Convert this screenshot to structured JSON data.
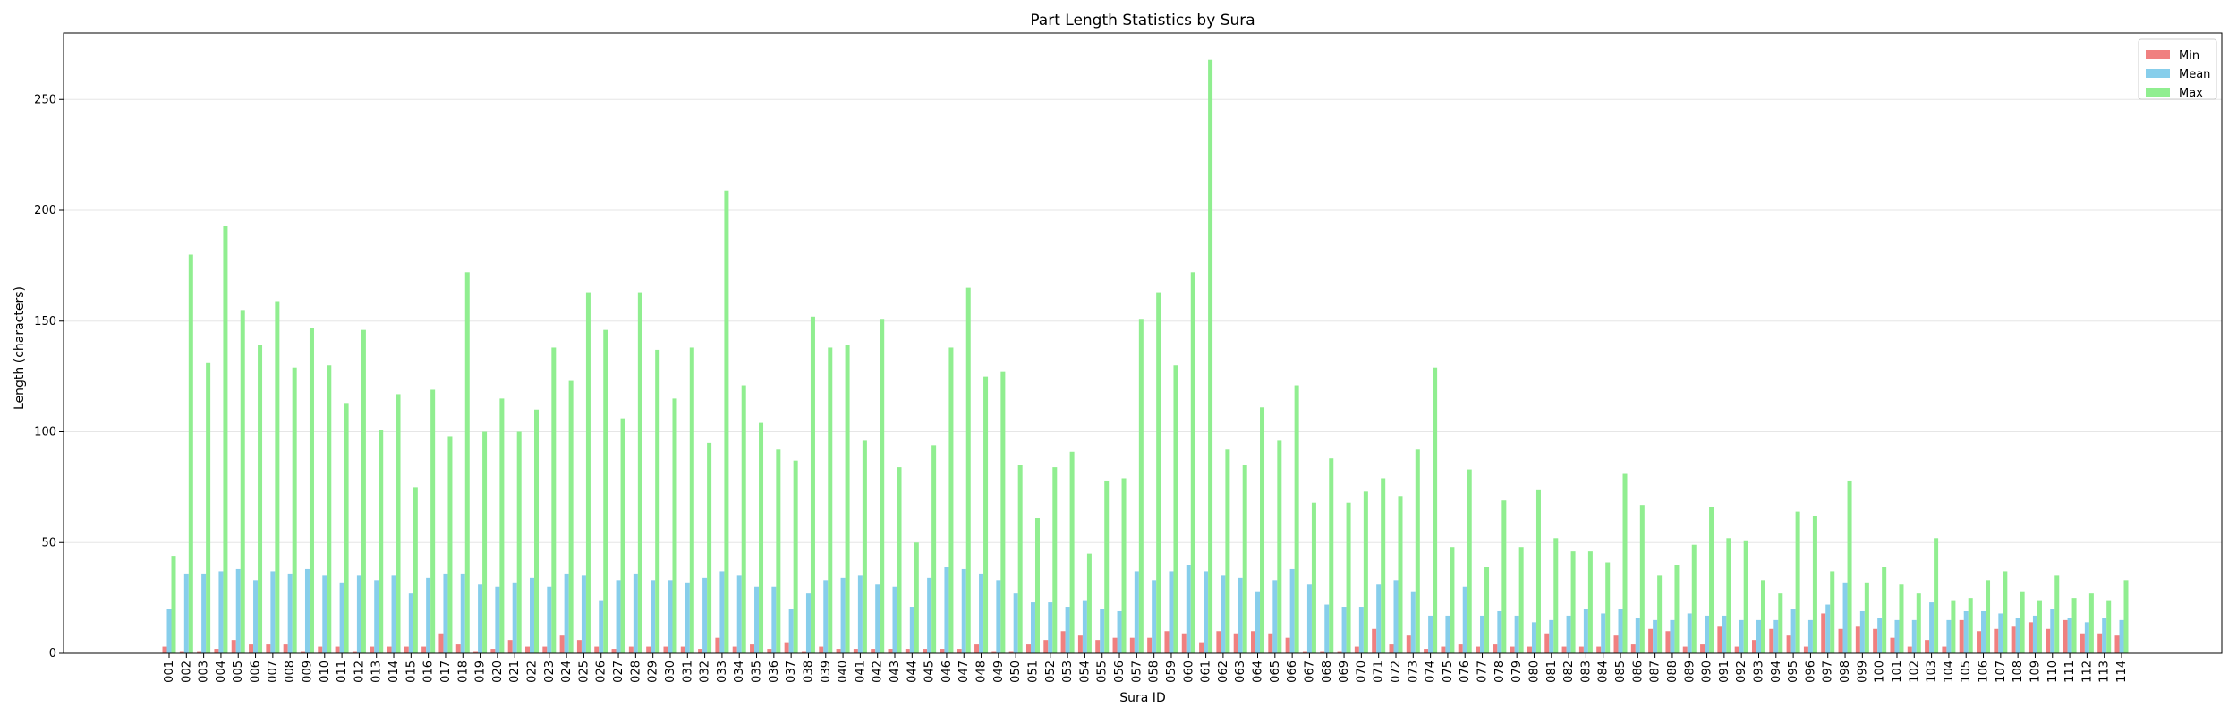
{
  "chart_data": {
    "type": "bar",
    "title": "Part Length Statistics by Sura",
    "xlabel": "Sura ID",
    "ylabel": "Length (characters)",
    "ylim": [
      0,
      280
    ],
    "yticks": [
      0,
      50,
      100,
      150,
      200,
      250
    ],
    "grid": "horizontal",
    "legend_position": "top-right",
    "categories": [
      "001",
      "002",
      "003",
      "004",
      "005",
      "006",
      "007",
      "008",
      "009",
      "010",
      "011",
      "012",
      "013",
      "014",
      "015",
      "016",
      "017",
      "018",
      "019",
      "020",
      "021",
      "022",
      "023",
      "024",
      "025",
      "026",
      "027",
      "028",
      "029",
      "030",
      "031",
      "032",
      "033",
      "034",
      "035",
      "036",
      "037",
      "038",
      "039",
      "040",
      "041",
      "042",
      "043",
      "044",
      "045",
      "046",
      "047",
      "048",
      "049",
      "050",
      "051",
      "052",
      "053",
      "054",
      "055",
      "056",
      "057",
      "058",
      "059",
      "060",
      "061",
      "062",
      "063",
      "064",
      "065",
      "066",
      "067",
      "068",
      "069",
      "070",
      "071",
      "072",
      "073",
      "074",
      "075",
      "076",
      "077",
      "078",
      "079",
      "080",
      "081",
      "082",
      "083",
      "084",
      "085",
      "086",
      "087",
      "088",
      "089",
      "090",
      "091",
      "092",
      "093",
      "094",
      "095",
      "096",
      "097",
      "098",
      "099",
      "100",
      "101",
      "102",
      "103",
      "104",
      "105",
      "106",
      "107",
      "108",
      "109",
      "110",
      "111",
      "112",
      "113",
      "114"
    ],
    "series": [
      {
        "name": "Min",
        "color": "#f08080",
        "values": [
          3,
          1,
          1,
          2,
          6,
          4,
          4,
          4,
          1,
          3,
          3,
          1,
          3,
          3,
          3,
          3,
          9,
          4,
          1,
          2,
          6,
          3,
          3,
          8,
          6,
          3,
          2,
          3,
          3,
          3,
          3,
          2,
          7,
          3,
          4,
          2,
          5,
          1,
          3,
          2,
          2,
          2,
          2,
          2,
          2,
          2,
          2,
          4,
          1,
          1,
          4,
          6,
          10,
          8,
          6,
          7,
          7,
          7,
          10,
          9,
          5,
          10,
          9,
          10,
          9,
          7,
          1,
          1,
          1,
          3,
          11,
          4,
          8,
          2,
          3,
          4,
          3,
          4,
          3,
          3,
          9,
          3,
          3,
          3,
          8,
          4,
          11,
          10,
          3,
          4,
          12,
          3,
          6,
          11,
          8,
          3,
          18,
          11,
          12,
          11,
          7,
          3,
          6,
          3,
          15,
          10,
          11,
          12,
          14,
          11,
          15,
          9,
          9,
          8
        ]
      },
      {
        "name": "Mean",
        "color": "#87ceeb",
        "values": [
          20,
          36,
          36,
          37,
          38,
          33,
          37,
          36,
          38,
          35,
          32,
          35,
          33,
          35,
          27,
          34,
          36,
          36,
          31,
          30,
          32,
          34,
          30,
          36,
          35,
          24,
          33,
          36,
          33,
          33,
          32,
          34,
          37,
          35,
          30,
          30,
          20,
          27,
          33,
          34,
          35,
          31,
          30,
          21,
          34,
          39,
          38,
          36,
          33,
          27,
          23,
          23,
          21,
          24,
          20,
          19,
          37,
          33,
          37,
          40,
          37,
          35,
          34,
          28,
          33,
          38,
          31,
          22,
          21,
          21,
          31,
          33,
          28,
          17,
          17,
          30,
          17,
          19,
          17,
          14,
          15,
          17,
          20,
          18,
          20,
          16,
          15,
          15,
          18,
          17,
          17,
          15,
          15,
          15,
          20,
          15,
          22,
          32,
          19,
          16,
          15,
          15,
          23,
          15,
          19,
          19,
          18,
          16,
          17,
          20,
          16,
          14,
          16,
          15
        ]
      },
      {
        "name": "Max",
        "color": "#90ee90",
        "values": [
          44,
          180,
          131,
          193,
          155,
          139,
          159,
          129,
          147,
          130,
          113,
          146,
          101,
          117,
          75,
          119,
          98,
          172,
          100,
          115,
          100,
          110,
          138,
          123,
          163,
          146,
          106,
          163,
          137,
          115,
          138,
          95,
          209,
          121,
          104,
          92,
          87,
          152,
          138,
          139,
          96,
          151,
          84,
          50,
          94,
          138,
          165,
          125,
          127,
          85,
          61,
          84,
          91,
          45,
          78,
          79,
          151,
          163,
          130,
          172,
          268,
          92,
          85,
          111,
          96,
          121,
          68,
          88,
          68,
          73,
          79,
          71,
          92,
          129,
          48,
          83,
          39,
          69,
          48,
          74,
          52,
          46,
          46,
          41,
          81,
          67,
          35,
          40,
          49,
          66,
          52,
          51,
          33,
          27,
          64,
          62,
          37,
          78,
          32,
          39,
          31,
          27,
          52,
          24,
          25,
          33,
          37,
          28,
          24,
          35,
          25,
          27,
          24,
          33
        ]
      }
    ]
  }
}
